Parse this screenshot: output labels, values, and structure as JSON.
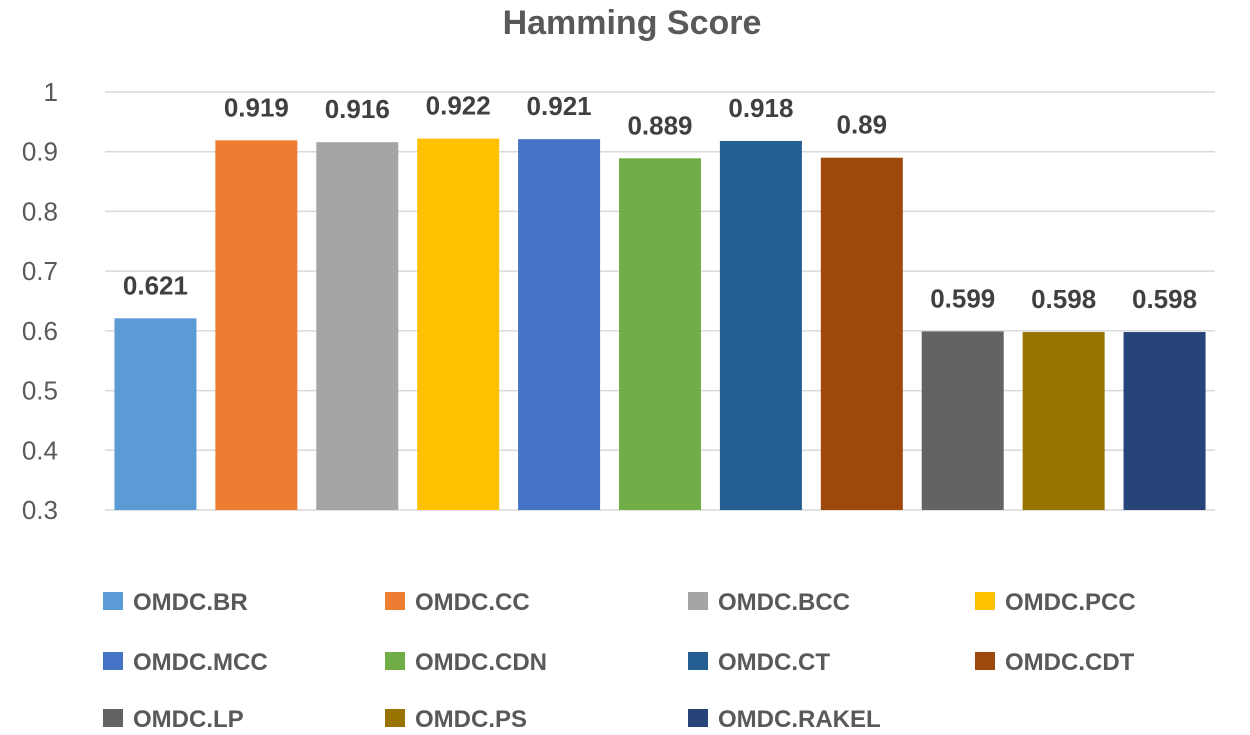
{
  "chart_data": {
    "type": "bar",
    "title": "Hamming Score",
    "xlabel": "",
    "ylabel": "",
    "ylim": [
      0.3,
      1.0
    ],
    "yticks": [
      "0.3",
      "0.4",
      "0.5",
      "0.6",
      "0.7",
      "0.8",
      "0.9",
      "1"
    ],
    "grid": true,
    "legend_position": "bottom",
    "categories": [
      "OMDC.BR",
      "OMDC.CC",
      "OMDC.BCC",
      "OMDC.PCC",
      "OMDC.MCC",
      "OMDC.CDN",
      "OMDC.CT",
      "OMDC.CDT",
      "OMDC.LP",
      "OMDC.PS",
      "OMDC.RAKEL"
    ],
    "values": [
      0.621,
      0.919,
      0.916,
      0.922,
      0.921,
      0.889,
      0.918,
      0.89,
      0.599,
      0.598,
      0.598
    ],
    "data_labels": [
      "0.621",
      "0.919",
      "0.916",
      "0.922",
      "0.921",
      "0.889",
      "0.918",
      "0.89",
      "0.599",
      "0.598",
      "0.598"
    ],
    "colors": [
      "#5b9bd5",
      "#ed7d31",
      "#a5a5a5",
      "#ffc000",
      "#4472c4",
      "#70ad47",
      "#255e91",
      "#9e480e",
      "#636363",
      "#997300",
      "#264478"
    ]
  }
}
